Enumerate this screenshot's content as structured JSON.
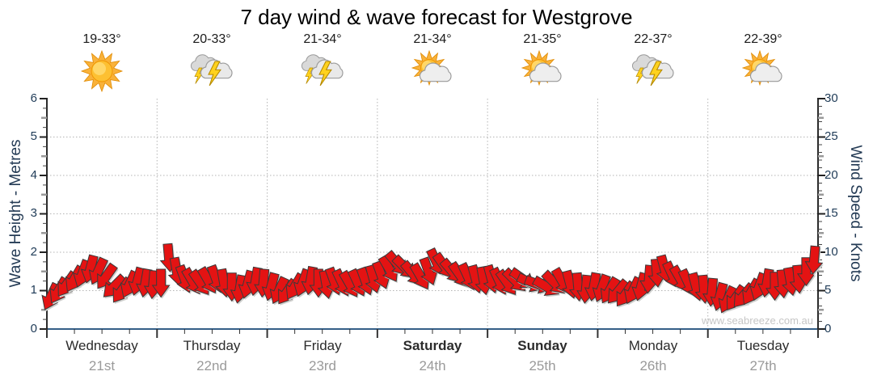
{
  "title": "7 day wind & wave forecast for Westgrove",
  "watermark": "www.seabreeze.com.au",
  "colors": {
    "arrow": "#e41313",
    "arrow_outline": "#3a3a3a",
    "arrow_shadow": "#cfcfcd",
    "x_axis": "#355f87",
    "y_axis": "#2b2b2b",
    "grid": "#b4b4b4",
    "tick_label": "#1f3b57"
  },
  "axes": {
    "left": {
      "title": "Wave Height - Metres",
      "ticks": [
        "0",
        "1",
        "2",
        "3",
        "4",
        "5",
        "6"
      ],
      "range": [
        0,
        6
      ]
    },
    "right": {
      "title": "Wind Speed - Knots",
      "ticks": [
        "0",
        "5",
        "10",
        "15",
        "20",
        "25",
        "30"
      ],
      "range": [
        0,
        30
      ]
    }
  },
  "days": [
    {
      "name": "Wednesday",
      "date": "21st",
      "temp": "19-33°",
      "icon": "sunny"
    },
    {
      "name": "Thursday",
      "date": "22nd",
      "temp": "20-33°",
      "icon": "storm"
    },
    {
      "name": "Friday",
      "date": "23rd",
      "temp": "21-34°",
      "icon": "storm"
    },
    {
      "name": "Saturday",
      "date": "24th",
      "temp": "21-34°",
      "icon": "partly"
    },
    {
      "name": "Sunday",
      "date": "25th",
      "temp": "21-35°",
      "icon": "partly"
    },
    {
      "name": "Monday",
      "date": "26th",
      "temp": "22-37°",
      "icon": "storm"
    },
    {
      "name": "Tuesday",
      "date": "27th",
      "temp": "22-39°",
      "icon": "partly"
    }
  ],
  "chart_data": {
    "type": "wind-arrows",
    "title": "7 day wind & wave forecast for Westgrove",
    "categories": [
      "Wednesday 21st",
      "Thursday 22nd",
      "Friday 23rd",
      "Saturday 24th",
      "Sunday 25th",
      "Monday 26th",
      "Tuesday 27th"
    ],
    "ylabel_left": "Wave Height - Metres",
    "ylabel_right": "Wind Speed - Knots",
    "ylim_left": [
      0,
      6
    ],
    "ylim_right": [
      0,
      30
    ],
    "grid": "dotted, horizontal at 1-5 m, vertical at day boundaries",
    "legend": "none",
    "samples_per_day": 14,
    "series_note": "wind speed in knots with arrow direction (degrees, direction arrow points, 180 = down)",
    "wind": [
      [
        4.2,
        205
      ],
      [
        5.0,
        210
      ],
      [
        5.8,
        215
      ],
      [
        6.5,
        210
      ],
      [
        7.2,
        200
      ],
      [
        7.8,
        195
      ],
      [
        7.5,
        205
      ],
      [
        6.8,
        215
      ],
      [
        5.5,
        225
      ],
      [
        5.0,
        215
      ],
      [
        5.8,
        205
      ],
      [
        6.2,
        195
      ],
      [
        6.0,
        190
      ],
      [
        5.8,
        185
      ],
      [
        6.0,
        180
      ],
      [
        9.3,
        175
      ],
      [
        7.5,
        170
      ],
      [
        6.5,
        160
      ],
      [
        6.2,
        150
      ],
      [
        6.0,
        145
      ],
      [
        6.3,
        150
      ],
      [
        6.5,
        160
      ],
      [
        6.0,
        170
      ],
      [
        5.5,
        180
      ],
      [
        5.2,
        190
      ],
      [
        5.8,
        195
      ],
      [
        6.2,
        190
      ],
      [
        6.0,
        185
      ],
      [
        5.5,
        195
      ],
      [
        5.0,
        205
      ],
      [
        4.8,
        215
      ],
      [
        5.5,
        210
      ],
      [
        6.0,
        200
      ],
      [
        6.3,
        190
      ],
      [
        6.0,
        180
      ],
      [
        5.8,
        170
      ],
      [
        6.2,
        160
      ],
      [
        6.0,
        155
      ],
      [
        5.8,
        150
      ],
      [
        6.0,
        155
      ],
      [
        6.2,
        160
      ],
      [
        6.5,
        165
      ],
      [
        7.0,
        160
      ],
      [
        7.8,
        150
      ],
      [
        8.5,
        140
      ],
      [
        8.0,
        135
      ],
      [
        7.2,
        140
      ],
      [
        6.8,
        150
      ],
      [
        7.5,
        160
      ],
      [
        8.7,
        155
      ],
      [
        8.2,
        145
      ],
      [
        7.5,
        140
      ],
      [
        7.0,
        145
      ],
      [
        6.8,
        155
      ],
      [
        6.5,
        165
      ],
      [
        6.3,
        170
      ],
      [
        6.5,
        165
      ],
      [
        6.2,
        155
      ],
      [
        6.0,
        145
      ],
      [
        6.3,
        135
      ],
      [
        6.5,
        125
      ],
      [
        6.0,
        115
      ],
      [
        5.8,
        110
      ],
      [
        5.5,
        120
      ],
      [
        6.0,
        135
      ],
      [
        6.2,
        150
      ],
      [
        5.8,
        165
      ],
      [
        5.5,
        175
      ],
      [
        5.2,
        185
      ],
      [
        5.5,
        190
      ],
      [
        5.3,
        200
      ],
      [
        5.0,
        210
      ],
      [
        4.8,
        220
      ],
      [
        4.5,
        215
      ],
      [
        5.0,
        205
      ],
      [
        5.5,
        195
      ],
      [
        6.5,
        185
      ],
      [
        7.3,
        175
      ],
      [
        7.8,
        165
      ],
      [
        7.0,
        155
      ],
      [
        6.5,
        150
      ],
      [
        6.0,
        155
      ],
      [
        5.5,
        165
      ],
      [
        5.2,
        175
      ],
      [
        4.8,
        185
      ],
      [
        4.2,
        195
      ],
      [
        3.8,
        205
      ],
      [
        4.0,
        215
      ],
      [
        4.3,
        220
      ],
      [
        4.8,
        210
      ],
      [
        5.5,
        200
      ],
      [
        6.0,
        190
      ],
      [
        5.6,
        180
      ],
      [
        5.9,
        175
      ],
      [
        6.2,
        170
      ],
      [
        6.5,
        175
      ],
      [
        7.5,
        180
      ],
      [
        9.0,
        185
      ]
    ]
  }
}
